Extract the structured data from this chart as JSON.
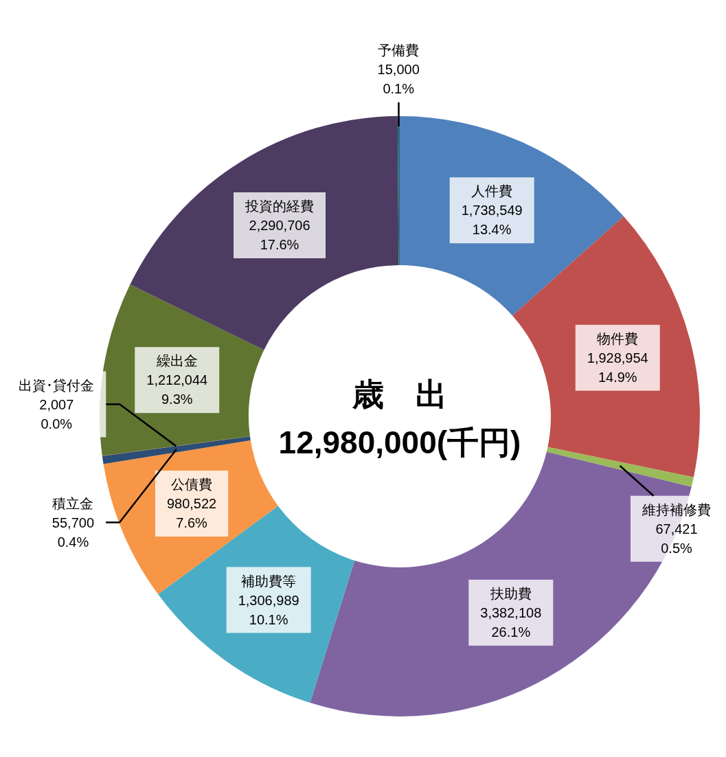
{
  "chart_data": {
    "type": "donut",
    "title": "歳　出",
    "subtitle": "12,980,000(千円)",
    "categories": [
      "人件費",
      "物件費",
      "維持補修費",
      "扶助費",
      "補助費等",
      "公債費",
      "積立金",
      "出資･貸付金",
      "繰出金",
      "投資的経費",
      "予備費"
    ],
    "values": [
      1738549,
      1928954,
      67421,
      3382108,
      1306989,
      980522,
      55700,
      2007,
      1212044,
      2290706,
      15000
    ],
    "colors": [
      "#4f81bd",
      "#c0504d",
      "#9bbb59",
      "#8064a2",
      "#4bacc6",
      "#f79646",
      "#2c4d75",
      "#772c2a",
      "#5f7530",
      "#4d3b62",
      "#276a7c"
    ],
    "value_labels": [
      "1,738,549\n13.4%",
      "1,928,954\n14.9%",
      "67,421\n0.5%",
      "3,382,108\n26.1%",
      "1,306,989\n10.1%",
      "980,522\n7.6%",
      "55,700\n0.4%",
      "2,007\n0.0%",
      "1,212,044\n9.3%",
      "2,290,706\n17.6%",
      "15,000\n0.1%"
    ]
  }
}
